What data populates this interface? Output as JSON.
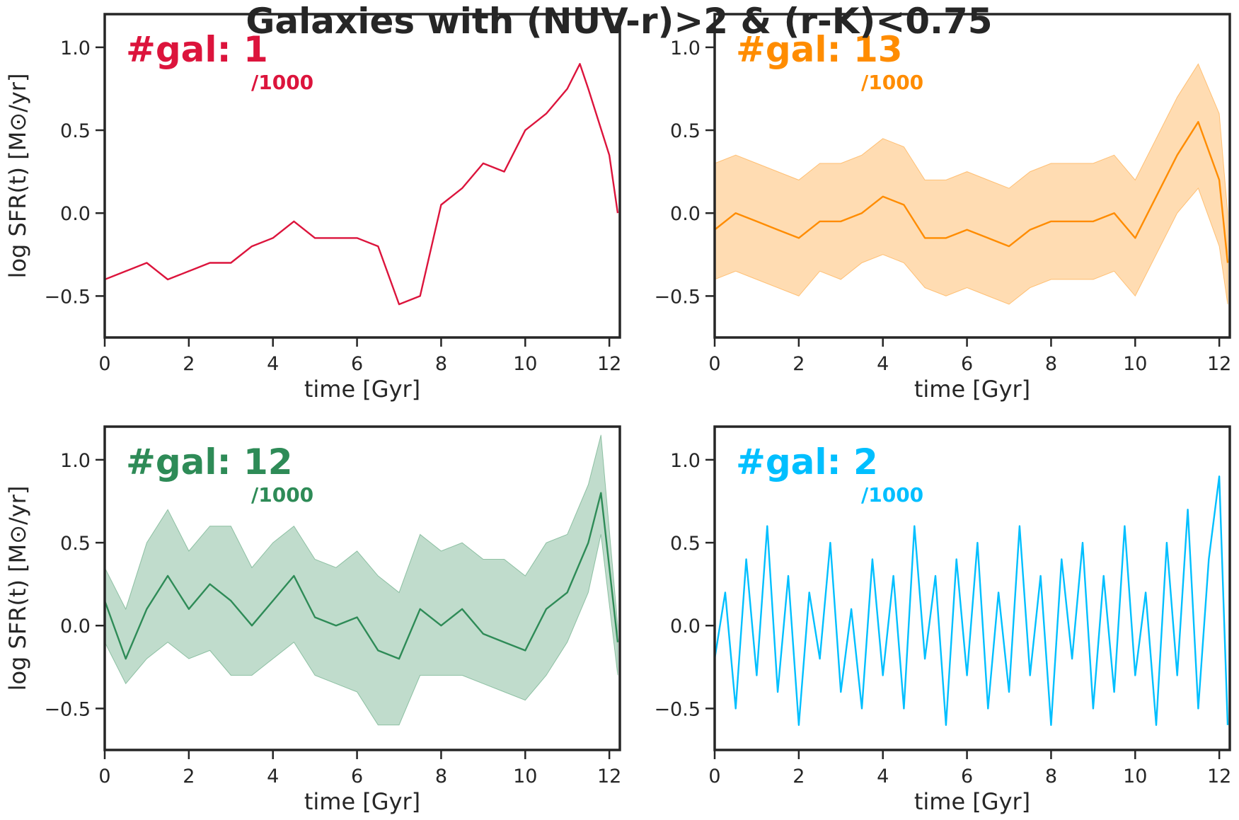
{
  "title": "Galaxies with (NUV-r)>2 & (r-K)<0.75",
  "chart_data": [
    {
      "type": "line",
      "panel": "top-left",
      "color": "#dc143c",
      "band": false,
      "annotation": "#gal: 1",
      "annotation_sub": "/1000",
      "xlabel": "time [Gyr]",
      "ylabel": "log SFR(t) [M⊙/yr]",
      "xlim": [
        0,
        12.25
      ],
      "ylim": [
        -0.75,
        1.2
      ],
      "xticks": [
        "0",
        "2",
        "4",
        "6",
        "8",
        "10",
        "12"
      ],
      "yticks": [
        "−0.5",
        "0.0",
        "0.5",
        "1.0"
      ],
      "series": [
        {
          "x": [
            0,
            0.5,
            1,
            1.5,
            2,
            2.5,
            3,
            3.5,
            4,
            4.5,
            5,
            5.5,
            6,
            6.5,
            7,
            7.5,
            8,
            8.5,
            9,
            9.5,
            10,
            10.5,
            11,
            11.3,
            11.5,
            12,
            12.2
          ],
          "y": [
            -0.4,
            -0.35,
            -0.3,
            -0.4,
            -0.35,
            -0.3,
            -0.3,
            -0.2,
            -0.15,
            -0.05,
            -0.15,
            -0.15,
            -0.15,
            -0.2,
            -0.55,
            -0.5,
            0.05,
            0.15,
            0.3,
            0.25,
            0.5,
            0.6,
            0.75,
            0.9,
            0.75,
            0.35,
            0.0
          ]
        }
      ]
    },
    {
      "type": "line",
      "panel": "top-right",
      "color": "#ff8c00",
      "band": true,
      "annotation": "#gal: 13",
      "annotation_sub": "/1000",
      "xlabel": "time [Gyr]",
      "ylabel": "",
      "xlim": [
        0,
        12.25
      ],
      "ylim": [
        -0.75,
        1.2
      ],
      "xticks": [
        "0",
        "2",
        "4",
        "6",
        "8",
        "10",
        "12"
      ],
      "yticks": [
        "−0.5",
        "0.0",
        "0.5",
        "1.0"
      ],
      "series": [
        {
          "x": [
            0,
            0.5,
            1,
            1.5,
            2,
            2.5,
            3,
            3.5,
            4,
            4.5,
            5,
            5.5,
            6,
            6.5,
            7,
            7.5,
            8,
            8.5,
            9,
            9.5,
            10,
            10.5,
            11,
            11.5,
            12,
            12.2
          ],
          "y": [
            -0.1,
            0.0,
            -0.05,
            -0.1,
            -0.15,
            -0.05,
            -0.05,
            0.0,
            0.1,
            0.05,
            -0.15,
            -0.15,
            -0.1,
            -0.15,
            -0.2,
            -0.1,
            -0.05,
            -0.05,
            -0.05,
            0.0,
            -0.15,
            0.1,
            0.35,
            0.55,
            0.2,
            -0.3
          ],
          "lower": [
            -0.4,
            -0.35,
            -0.4,
            -0.45,
            -0.5,
            -0.35,
            -0.4,
            -0.3,
            -0.25,
            -0.3,
            -0.45,
            -0.5,
            -0.45,
            -0.5,
            -0.55,
            -0.45,
            -0.4,
            -0.4,
            -0.4,
            -0.35,
            -0.5,
            -0.25,
            0.0,
            0.15,
            -0.2,
            -0.55
          ],
          "upper": [
            0.3,
            0.35,
            0.3,
            0.25,
            0.2,
            0.3,
            0.3,
            0.35,
            0.45,
            0.4,
            0.2,
            0.2,
            0.25,
            0.2,
            0.15,
            0.25,
            0.3,
            0.3,
            0.3,
            0.35,
            0.2,
            0.45,
            0.7,
            0.9,
            0.6,
            0.0
          ]
        }
      ]
    },
    {
      "type": "line",
      "panel": "bottom-left",
      "color": "#2e8b57",
      "band": true,
      "annotation": "#gal: 12",
      "annotation_sub": "/1000",
      "xlabel": "time [Gyr]",
      "ylabel": "log SFR(t) [M⊙/yr]",
      "xlim": [
        0,
        12.25
      ],
      "ylim": [
        -0.75,
        1.2
      ],
      "xticks": [
        "0",
        "2",
        "4",
        "6",
        "8",
        "10",
        "12"
      ],
      "yticks": [
        "−0.5",
        "0.0",
        "0.5",
        "1.0"
      ],
      "series": [
        {
          "x": [
            0,
            0.5,
            1,
            1.5,
            2,
            2.5,
            3,
            3.5,
            4,
            4.5,
            5,
            5.5,
            6,
            6.5,
            7,
            7.5,
            8,
            8.5,
            9,
            9.5,
            10,
            10.5,
            11,
            11.5,
            11.8,
            12.2
          ],
          "y": [
            0.15,
            -0.2,
            0.1,
            0.3,
            0.1,
            0.25,
            0.15,
            0.0,
            0.15,
            0.3,
            0.05,
            0.0,
            0.05,
            -0.15,
            -0.2,
            0.1,
            0.0,
            0.1,
            -0.05,
            -0.1,
            -0.15,
            0.1,
            0.2,
            0.5,
            0.8,
            -0.1
          ],
          "lower": [
            -0.1,
            -0.35,
            -0.2,
            -0.1,
            -0.2,
            -0.15,
            -0.3,
            -0.3,
            -0.2,
            -0.1,
            -0.3,
            -0.35,
            -0.4,
            -0.6,
            -0.6,
            -0.3,
            -0.3,
            -0.3,
            -0.35,
            -0.4,
            -0.45,
            -0.3,
            -0.1,
            0.2,
            0.55,
            -0.3
          ],
          "upper": [
            0.35,
            0.1,
            0.5,
            0.7,
            0.45,
            0.6,
            0.6,
            0.35,
            0.5,
            0.6,
            0.4,
            0.35,
            0.45,
            0.3,
            0.2,
            0.55,
            0.45,
            0.5,
            0.4,
            0.4,
            0.3,
            0.5,
            0.55,
            0.85,
            1.15,
            0.0
          ]
        }
      ]
    },
    {
      "type": "line",
      "panel": "bottom-right",
      "color": "#00bfff",
      "band": true,
      "annotation": "#gal: 2",
      "annotation_sub": "/1000",
      "xlabel": "time [Gyr]",
      "ylabel": "",
      "xlim": [
        0,
        12.25
      ],
      "ylim": [
        -0.75,
        1.2
      ],
      "xticks": [
        "0",
        "2",
        "4",
        "6",
        "8",
        "10",
        "12"
      ],
      "yticks": [
        "−0.5",
        "0.0",
        "0.5",
        "1.0"
      ],
      "series": [
        {
          "x": [
            0,
            0.25,
            0.5,
            0.75,
            1,
            1.25,
            1.5,
            1.75,
            2,
            2.25,
            2.5,
            2.75,
            3,
            3.25,
            3.5,
            3.75,
            4,
            4.25,
            4.5,
            4.75,
            5,
            5.25,
            5.5,
            5.75,
            6,
            6.25,
            6.5,
            6.75,
            7,
            7.25,
            7.5,
            7.75,
            8,
            8.25,
            8.5,
            8.75,
            9,
            9.25,
            9.5,
            9.75,
            10,
            10.25,
            10.5,
            10.75,
            11,
            11.25,
            11.5,
            11.75,
            12,
            12.2
          ],
          "y": [
            -0.2,
            0.2,
            -0.5,
            0.4,
            -0.3,
            0.6,
            -0.4,
            0.3,
            -0.6,
            0.2,
            -0.2,
            0.5,
            -0.4,
            0.1,
            -0.5,
            0.4,
            -0.3,
            0.3,
            -0.5,
            0.6,
            -0.2,
            0.3,
            -0.6,
            0.4,
            -0.3,
            0.5,
            -0.5,
            0.2,
            -0.4,
            0.6,
            -0.3,
            0.3,
            -0.6,
            0.4,
            -0.2,
            0.5,
            -0.5,
            0.3,
            -0.4,
            0.6,
            -0.3,
            0.2,
            -0.6,
            0.5,
            -0.3,
            0.7,
            -0.5,
            0.4,
            0.9,
            -0.6
          ]
        }
      ]
    }
  ]
}
